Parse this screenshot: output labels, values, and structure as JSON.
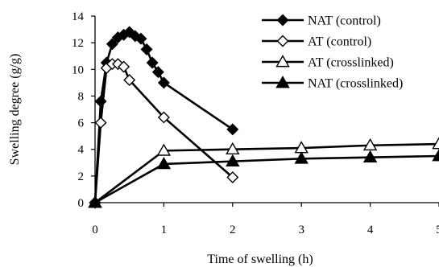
{
  "chart_data": {
    "type": "line",
    "title": "",
    "xlabel": "Time of swelling (h)",
    "ylabel": "Swelling degree (g/g)",
    "xlim": [
      0,
      5
    ],
    "ylim": [
      0,
      14
    ],
    "xticks": [
      0,
      1,
      2,
      3,
      4,
      5
    ],
    "yticks": [
      0,
      2,
      4,
      6,
      8,
      10,
      12,
      14
    ],
    "x_tick_labels": [
      "0",
      "1",
      "2",
      "3",
      "4",
      "5"
    ],
    "y_tick_labels": [
      "0",
      "2",
      "4",
      "6",
      "8",
      "10",
      "12",
      "14"
    ],
    "grid": false,
    "legend_position": "top-right",
    "series": [
      {
        "name": "NAT (control)",
        "marker": "diamond",
        "filled": true,
        "color": "#000000",
        "x": [
          0,
          0.083,
          0.167,
          0.25,
          0.333,
          0.417,
          0.5,
          0.583,
          0.667,
          0.75,
          0.833,
          0.917,
          1,
          2
        ],
        "y": [
          0,
          7.6,
          10.5,
          11.9,
          12.4,
          12.6,
          12.8,
          12.5,
          12.3,
          11.5,
          10.5,
          9.8,
          9.0,
          5.5
        ]
      },
      {
        "name": "AT (control)",
        "marker": "diamond",
        "filled": false,
        "color": "#000000",
        "x": [
          0,
          0.083,
          0.167,
          0.25,
          0.333,
          0.417,
          0.5,
          1,
          2
        ],
        "y": [
          0,
          6.0,
          10.1,
          10.4,
          10.4,
          10.2,
          9.2,
          6.4,
          1.9
        ]
      },
      {
        "name": "AT (crosslinked)",
        "marker": "triangle",
        "filled": false,
        "color": "#000000",
        "x": [
          0,
          1,
          2,
          3,
          4,
          5
        ],
        "y": [
          0,
          3.9,
          4.0,
          4.1,
          4.3,
          4.4
        ]
      },
      {
        "name": "NAT (crosslinked)",
        "marker": "triangle",
        "filled": true,
        "color": "#000000",
        "x": [
          0,
          1,
          2,
          3,
          4,
          5
        ],
        "y": [
          0,
          2.9,
          3.1,
          3.3,
          3.4,
          3.5
        ]
      }
    ]
  }
}
